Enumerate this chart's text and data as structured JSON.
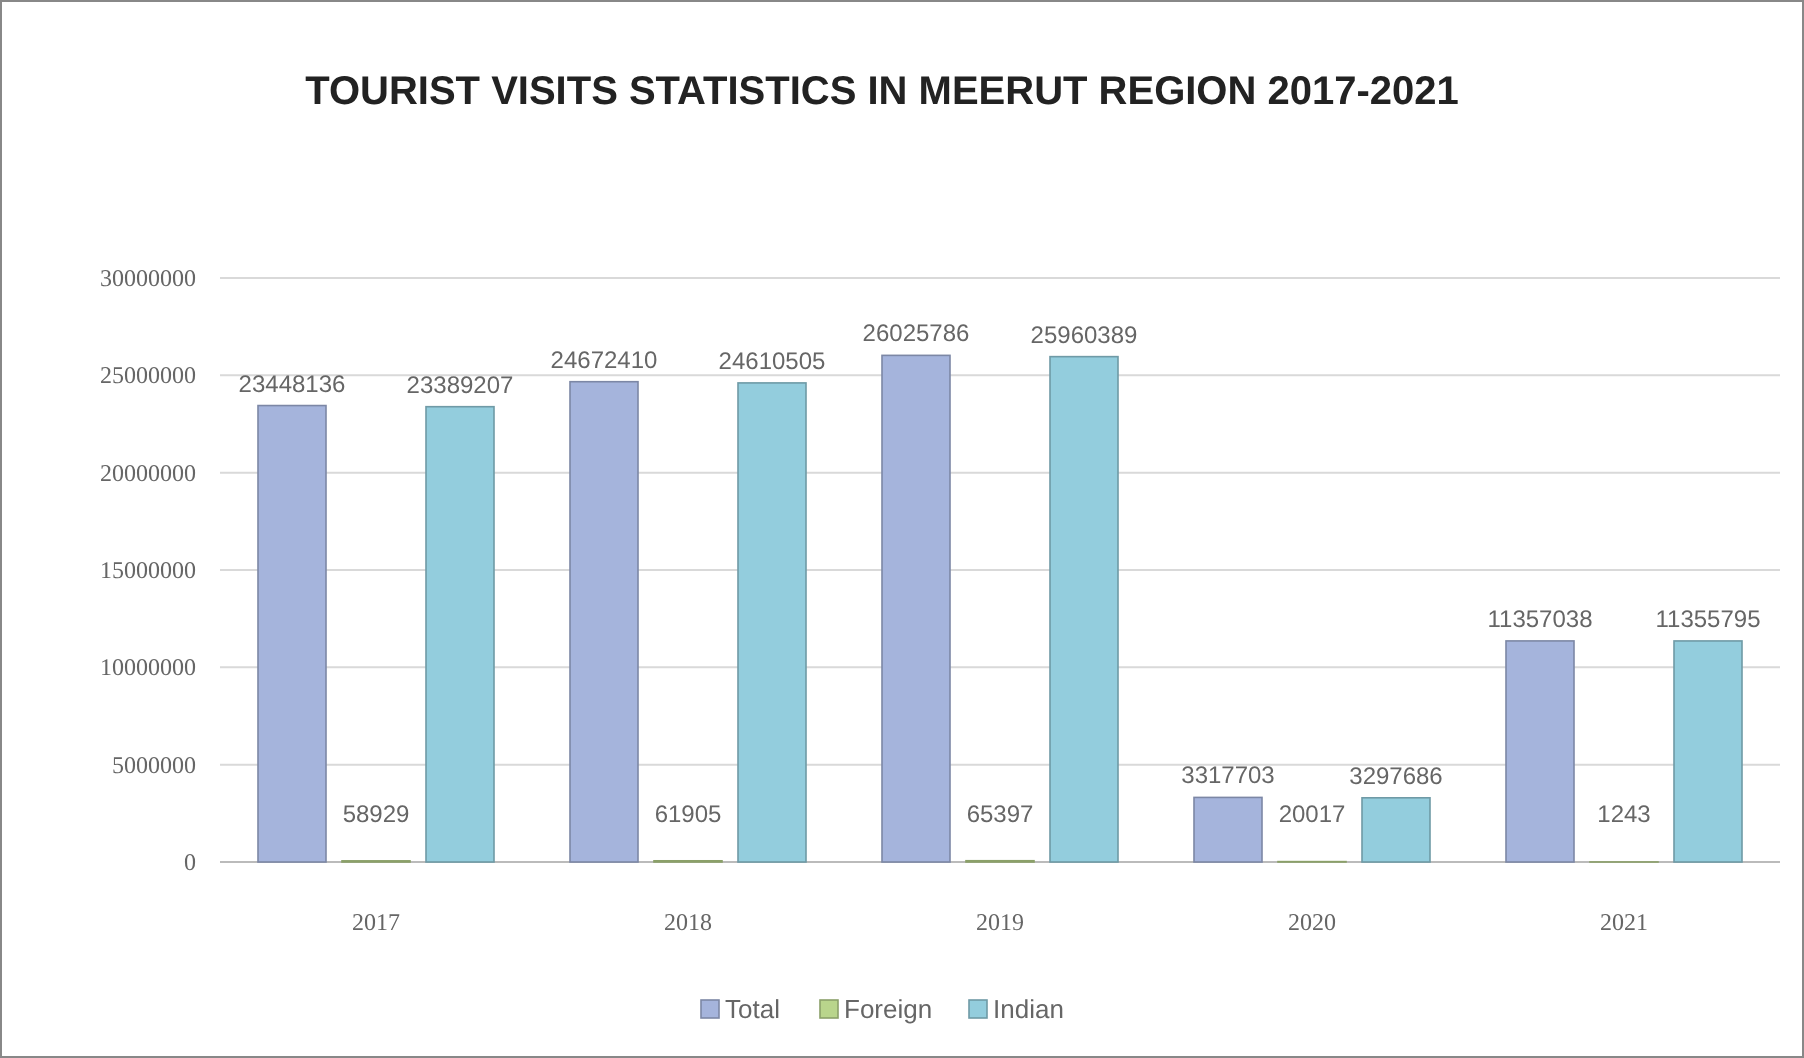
{
  "chart_data": {
    "type": "bar",
    "title": "TOURIST VISITS STATISTICS IN MEERUT REGION  2017-2021",
    "categories": [
      "2017",
      "2018",
      "2019",
      "2020",
      "2021"
    ],
    "series": [
      {
        "name": "Total",
        "color": "#a5b4dc",
        "values": [
          23448136,
          24672410,
          26025786,
          3317703,
          11357038
        ]
      },
      {
        "name": "Foreign",
        "color": "#b9d58c",
        "values": [
          58929,
          61905,
          65397,
          20017,
          1243
        ]
      },
      {
        "name": "Indian",
        "color": "#93cddd",
        "values": [
          23389207,
          24610505,
          25960389,
          3297686,
          11355795
        ]
      }
    ],
    "ylim": [
      0,
      30000000
    ],
    "yticks": [
      0,
      5000000,
      10000000,
      15000000,
      20000000,
      25000000,
      30000000
    ],
    "grid": "y",
    "legend": "bottom",
    "data_labels": true
  }
}
